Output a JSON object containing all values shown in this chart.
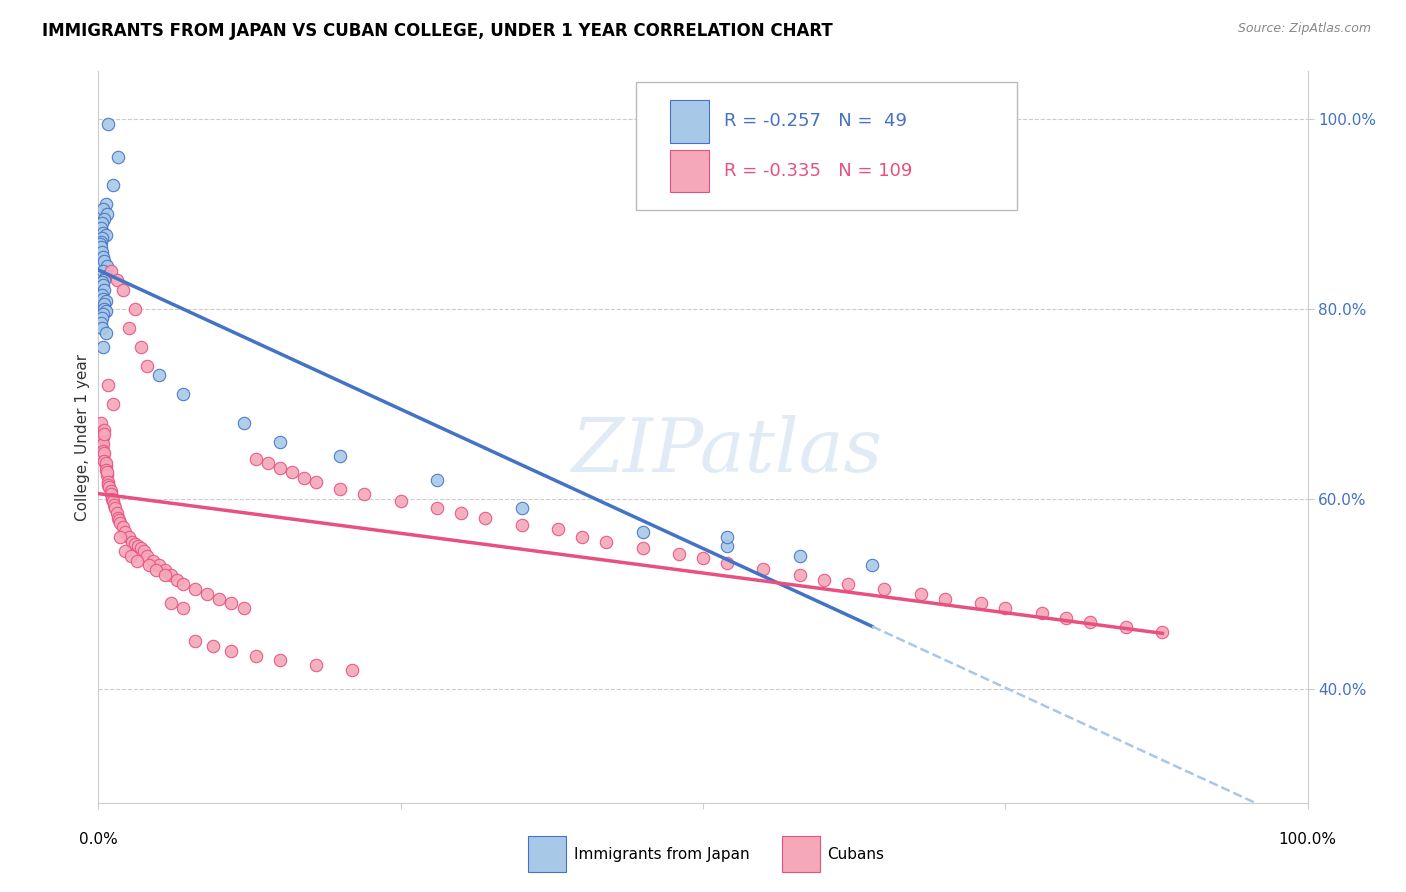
{
  "title": "IMMIGRANTS FROM JAPAN VS CUBAN COLLEGE, UNDER 1 YEAR CORRELATION CHART",
  "source": "Source: ZipAtlas.com",
  "ylabel": "College, Under 1 year",
  "ylabel_right_ticks": [
    "40.0%",
    "60.0%",
    "80.0%",
    "100.0%"
  ],
  "ylabel_right_values": [
    0.4,
    0.6,
    0.8,
    1.0
  ],
  "legend_label1": "Immigrants from Japan",
  "legend_label2": "Cubans",
  "legend_r1": "R = -0.257",
  "legend_n1": "N =  49",
  "legend_r2": "R = -0.335",
  "legend_n2": "N = 109",
  "color_japan": "#A8C8E8",
  "color_cuba": "#F4A8B8",
  "color_line_japan": "#4472C4",
  "color_line_cuba": "#E85080",
  "color_line_japan_dashed": "#A8C8E8",
  "watermark": "ZIPatlas",
  "japan_x": [
    0.008,
    0.016,
    0.012,
    0.006,
    0.004,
    0.007,
    0.005,
    0.003,
    0.002,
    0.004,
    0.006,
    0.003,
    0.002,
    0.001,
    0.002,
    0.003,
    0.004,
    0.005,
    0.007,
    0.004,
    0.006,
    0.005,
    0.003,
    0.004,
    0.005,
    0.003,
    0.004,
    0.006,
    0.005,
    0.005,
    0.006,
    0.004,
    0.003,
    0.002,
    0.003,
    0.006,
    0.004,
    0.05,
    0.07,
    0.12,
    0.15,
    0.2,
    0.28,
    0.35,
    0.45,
    0.52,
    0.58,
    0.64,
    0.52
  ],
  "japan_y": [
    0.995,
    0.96,
    0.93,
    0.91,
    0.905,
    0.9,
    0.895,
    0.89,
    0.885,
    0.88,
    0.878,
    0.875,
    0.87,
    0.868,
    0.865,
    0.86,
    0.855,
    0.85,
    0.845,
    0.84,
    0.835,
    0.83,
    0.828,
    0.825,
    0.82,
    0.815,
    0.81,
    0.808,
    0.805,
    0.8,
    0.798,
    0.795,
    0.79,
    0.785,
    0.78,
    0.775,
    0.76,
    0.73,
    0.71,
    0.68,
    0.66,
    0.645,
    0.62,
    0.59,
    0.565,
    0.55,
    0.54,
    0.53,
    0.56
  ],
  "cuba_x": [
    0.002,
    0.003,
    0.003,
    0.003,
    0.004,
    0.004,
    0.004,
    0.004,
    0.005,
    0.005,
    0.005,
    0.005,
    0.006,
    0.006,
    0.006,
    0.007,
    0.007,
    0.008,
    0.008,
    0.009,
    0.01,
    0.01,
    0.011,
    0.012,
    0.013,
    0.014,
    0.015,
    0.016,
    0.017,
    0.018,
    0.02,
    0.022,
    0.025,
    0.028,
    0.03,
    0.033,
    0.035,
    0.038,
    0.04,
    0.045,
    0.05,
    0.055,
    0.06,
    0.065,
    0.07,
    0.08,
    0.09,
    0.1,
    0.11,
    0.12,
    0.13,
    0.14,
    0.15,
    0.16,
    0.17,
    0.18,
    0.2,
    0.22,
    0.25,
    0.28,
    0.3,
    0.32,
    0.35,
    0.38,
    0.4,
    0.42,
    0.45,
    0.48,
    0.5,
    0.52,
    0.55,
    0.58,
    0.6,
    0.62,
    0.65,
    0.68,
    0.7,
    0.73,
    0.75,
    0.78,
    0.8,
    0.82,
    0.85,
    0.88,
    0.01,
    0.015,
    0.02,
    0.03,
    0.025,
    0.035,
    0.04,
    0.008,
    0.012,
    0.018,
    0.022,
    0.027,
    0.032,
    0.042,
    0.048,
    0.055,
    0.06,
    0.07,
    0.08,
    0.095,
    0.11,
    0.13,
    0.15,
    0.18,
    0.21
  ],
  "cuba_y": [
    0.68,
    0.67,
    0.66,
    0.655,
    0.665,
    0.658,
    0.65,
    0.645,
    0.672,
    0.668,
    0.648,
    0.64,
    0.635,
    0.638,
    0.63,
    0.625,
    0.628,
    0.618,
    0.615,
    0.612,
    0.608,
    0.605,
    0.6,
    0.598,
    0.593,
    0.59,
    0.585,
    0.58,
    0.578,
    0.575,
    0.57,
    0.565,
    0.56,
    0.555,
    0.552,
    0.55,
    0.548,
    0.545,
    0.54,
    0.535,
    0.53,
    0.525,
    0.52,
    0.515,
    0.51,
    0.505,
    0.5,
    0.495,
    0.49,
    0.485,
    0.642,
    0.638,
    0.632,
    0.628,
    0.622,
    0.618,
    0.61,
    0.605,
    0.598,
    0.59,
    0.585,
    0.58,
    0.572,
    0.568,
    0.56,
    0.555,
    0.548,
    0.542,
    0.538,
    0.532,
    0.526,
    0.52,
    0.515,
    0.51,
    0.505,
    0.5,
    0.495,
    0.49,
    0.485,
    0.48,
    0.475,
    0.47,
    0.465,
    0.46,
    0.84,
    0.83,
    0.82,
    0.8,
    0.78,
    0.76,
    0.74,
    0.72,
    0.7,
    0.56,
    0.545,
    0.54,
    0.535,
    0.53,
    0.525,
    0.52,
    0.49,
    0.485,
    0.45,
    0.445,
    0.44,
    0.435,
    0.43,
    0.425,
    0.42
  ],
  "xlim": [
    0.0,
    1.0
  ],
  "ylim": [
    0.28,
    1.05
  ]
}
